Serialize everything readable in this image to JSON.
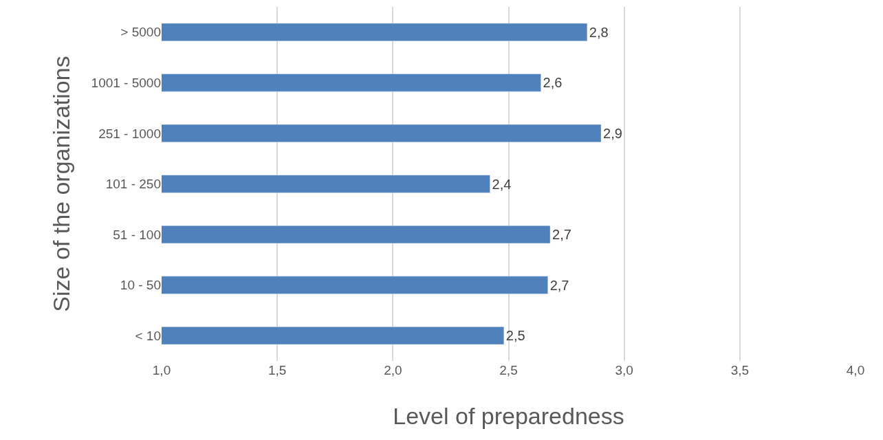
{
  "chart_data": {
    "type": "bar",
    "orientation": "horizontal",
    "xlabel": "Level of preparedness",
    "ylabel": "Size of the organizations",
    "categories": [
      "> 5000",
      "1001 - 5000",
      "251 - 1000",
      "101 - 250",
      "51 - 100",
      "10 - 50",
      "< 10"
    ],
    "values": [
      2.84,
      2.64,
      2.9,
      2.42,
      2.68,
      2.67,
      2.48
    ],
    "value_labels": [
      "2,8",
      "2,6",
      "2,9",
      "2,4",
      "2,7",
      "2,7",
      "2,5"
    ],
    "color": "#4f81bd",
    "xlim": [
      1,
      4
    ],
    "xticks": [
      {
        "value": 1,
        "label": "1,0"
      },
      {
        "value": 1.5,
        "label": "1,5"
      },
      {
        "value": 2,
        "label": "2,0"
      },
      {
        "value": 2.5,
        "label": "2,5"
      },
      {
        "value": 3,
        "label": "3,0"
      },
      {
        "value": 3.5,
        "label": "3,5"
      },
      {
        "value": 4,
        "label": "4,0"
      }
    ],
    "grid": "x",
    "legend": false
  }
}
